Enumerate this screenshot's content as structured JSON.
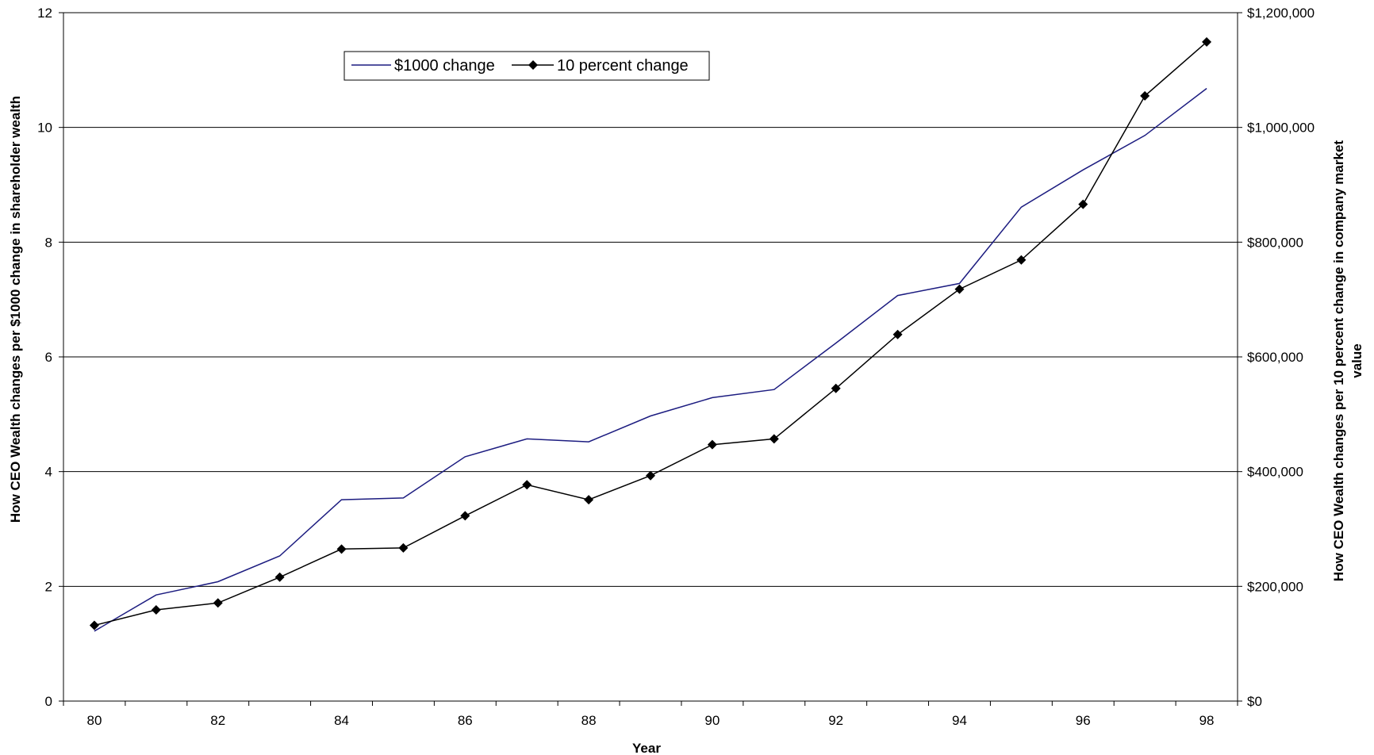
{
  "chart_data": {
    "type": "line",
    "xlabel": "Year",
    "ylabel_left": "How CEO Wealth changes per $1000 change in shareholder wealth",
    "ylabel_right_lines": [
      "How CEO Wealth changes per 10 percent change in company market",
      "value"
    ],
    "x": [
      80,
      81,
      82,
      83,
      84,
      85,
      86,
      87,
      88,
      89,
      90,
      91,
      92,
      93,
      94,
      95,
      96,
      97,
      98
    ],
    "x_ticks": [
      "80",
      "82",
      "84",
      "86",
      "88",
      "90",
      "92",
      "94",
      "96",
      "98"
    ],
    "x_tick_values": [
      80,
      82,
      84,
      86,
      88,
      90,
      92,
      94,
      96,
      98
    ],
    "y_left_range": [
      0,
      12
    ],
    "y_left_ticks": [
      "0",
      "2",
      "4",
      "6",
      "8",
      "10",
      "12"
    ],
    "y_right_range": [
      0,
      1200000
    ],
    "y_right_ticks": [
      "$0",
      "$200,000",
      "$400,000",
      "$600,000",
      "$800,000",
      "$1,000,000",
      "$1,200,000"
    ],
    "grid": true,
    "legend_position": "top-left",
    "series": [
      {
        "name": "$1000 change",
        "axis": "left",
        "color": "#1c1c80",
        "marker": "none",
        "values": [
          1.22,
          1.85,
          2.08,
          2.53,
          3.51,
          3.54,
          4.26,
          4.57,
          4.52,
          4.97,
          5.29,
          5.43,
          6.24,
          7.07,
          7.28,
          8.61,
          9.26,
          9.86,
          10.68
        ]
      },
      {
        "name": "10 percent change",
        "axis": "right",
        "color": "#000000",
        "marker": "diamond",
        "values": [
          132000,
          159000,
          171000,
          216000,
          265000,
          267000,
          323000,
          377000,
          351000,
          393000,
          447000,
          457000,
          545000,
          639000,
          718000,
          769000,
          866000,
          1055000,
          1149000
        ]
      }
    ]
  }
}
